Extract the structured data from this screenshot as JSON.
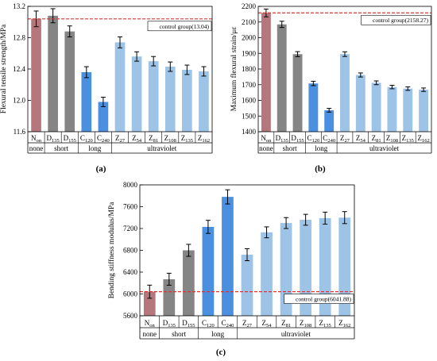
{
  "figure": {
    "panel_labels": [
      "(a)",
      "(b)",
      "(c)"
    ]
  },
  "chart_data": [
    {
      "type": "bar",
      "panel": "(a)",
      "ylabel": "Flexural tensile strength/MPa",
      "ylim": [
        11.6,
        13.2
      ],
      "yticks": [
        "11.6",
        "12.0",
        "12.4",
        "12.8",
        "13.2"
      ],
      "categories": [
        {
          "base": "N",
          "sub": "on"
        },
        {
          "base": "D",
          "sub": "135"
        },
        {
          "base": "D",
          "sub": "155"
        },
        {
          "base": "C",
          "sub": "120"
        },
        {
          "base": "C",
          "sub": "240"
        },
        {
          "base": "Z",
          "sub": "27"
        },
        {
          "base": "Z",
          "sub": "54"
        },
        {
          "base": "Z",
          "sub": "81"
        },
        {
          "base": "Z",
          "sub": "108"
        },
        {
          "base": "Z",
          "sub": "135"
        },
        {
          "base": "Z",
          "sub": "162"
        }
      ],
      "values": [
        13.04,
        13.08,
        12.88,
        12.36,
        11.98,
        12.74,
        12.56,
        12.5,
        12.43,
        12.39,
        12.37
      ],
      "errors": [
        0.1,
        0.09,
        0.07,
        0.07,
        0.06,
        0.07,
        0.06,
        0.06,
        0.06,
        0.06,
        0.06
      ],
      "groups": [
        {
          "label": "none",
          "count": 1
        },
        {
          "label": "short",
          "count": 2
        },
        {
          "label": "long",
          "count": 2
        },
        {
          "label": "ultraviolet",
          "count": 6
        }
      ],
      "reference": {
        "value": 13.04,
        "label": "control group(13.04)",
        "color": "#e0302f"
      },
      "colors": [
        "#b5777b",
        "#858585",
        "#858585",
        "#4a8fe0",
        "#4a8fe0",
        "#9dc3e6",
        "#9dc3e6",
        "#9dc3e6",
        "#9dc3e6",
        "#9dc3e6",
        "#9dc3e6"
      ],
      "grid": false
    },
    {
      "type": "bar",
      "panel": "(b)",
      "ylabel": "Maximum flexural strain/με",
      "ylim": [
        1400,
        2200
      ],
      "yticks": [
        "1400",
        "1500",
        "1600",
        "1700",
        "1800",
        "1900",
        "2000",
        "2100",
        "2200"
      ],
      "categories": [
        {
          "base": "N",
          "sub": "on"
        },
        {
          "base": "D",
          "sub": "135"
        },
        {
          "base": "D",
          "sub": "155"
        },
        {
          "base": "C",
          "sub": "120"
        },
        {
          "base": "C",
          "sub": "240"
        },
        {
          "base": "Z",
          "sub": "27"
        },
        {
          "base": "Z",
          "sub": "54"
        },
        {
          "base": "Z",
          "sub": "81"
        },
        {
          "base": "Z",
          "sub": "108"
        },
        {
          "base": "Z",
          "sub": "135"
        },
        {
          "base": "Z",
          "sub": "162"
        }
      ],
      "values": [
        2158,
        2085,
        1895,
        1708,
        1537,
        1895,
        1762,
        1712,
        1685,
        1675,
        1668
      ],
      "errors": [
        25,
        20,
        16,
        14,
        12,
        15,
        13,
        12,
        11,
        11,
        11
      ],
      "groups": [
        {
          "label": "none",
          "count": 1
        },
        {
          "label": "short",
          "count": 2
        },
        {
          "label": "long",
          "count": 2
        },
        {
          "label": "ultraviolet",
          "count": 6
        }
      ],
      "reference": {
        "value": 2158.27,
        "label": "control group(2158.27)",
        "color": "#e0302f"
      },
      "colors": [
        "#b5777b",
        "#858585",
        "#858585",
        "#4a8fe0",
        "#4a8fe0",
        "#9dc3e6",
        "#9dc3e6",
        "#9dc3e6",
        "#9dc3e6",
        "#9dc3e6",
        "#9dc3e6"
      ],
      "grid": false
    },
    {
      "type": "bar",
      "panel": "(c)",
      "ylabel": "Bending stiffness modulus/MPa",
      "ylim": [
        5600,
        8000
      ],
      "yticks": [
        "5600",
        "6000",
        "6400",
        "6800",
        "7200",
        "7600",
        "8000"
      ],
      "categories": [
        {
          "base": "N",
          "sub": "on"
        },
        {
          "base": "D",
          "sub": "135"
        },
        {
          "base": "D",
          "sub": "155"
        },
        {
          "base": "C",
          "sub": "120"
        },
        {
          "base": "C",
          "sub": "240"
        },
        {
          "base": "Z",
          "sub": "27"
        },
        {
          "base": "Z",
          "sub": "54"
        },
        {
          "base": "Z",
          "sub": "81"
        },
        {
          "base": "Z",
          "sub": "108"
        },
        {
          "base": "Z",
          "sub": "135"
        },
        {
          "base": "Z",
          "sub": "162"
        }
      ],
      "values": [
        6042,
        6270,
        6800,
        7230,
        7780,
        6720,
        7130,
        7300,
        7360,
        7390,
        7400
      ],
      "errors": [
        120,
        110,
        110,
        120,
        130,
        110,
        100,
        100,
        100,
        110,
        110
      ],
      "groups": [
        {
          "label": "none",
          "count": 1
        },
        {
          "label": "short",
          "count": 2
        },
        {
          "label": "long",
          "count": 2
        },
        {
          "label": "ultraviolet",
          "count": 6
        }
      ],
      "reference": {
        "value": 6041.88,
        "label": "control group(6041.88)",
        "color": "#e0302f"
      },
      "colors": [
        "#b5777b",
        "#858585",
        "#858585",
        "#4a8fe0",
        "#4a8fe0",
        "#9dc3e6",
        "#9dc3e6",
        "#9dc3e6",
        "#9dc3e6",
        "#9dc3e6",
        "#9dc3e6"
      ],
      "grid": false
    }
  ]
}
